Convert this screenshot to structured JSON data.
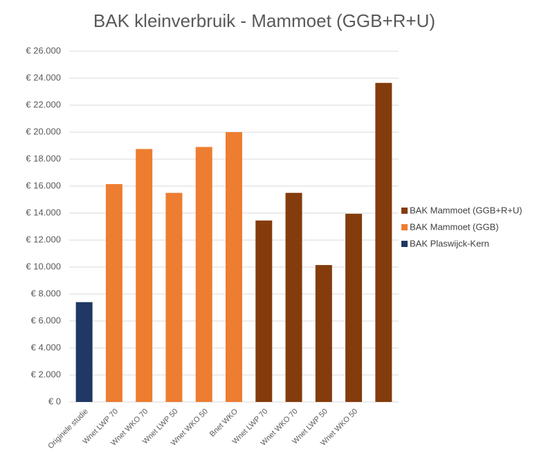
{
  "chart_data": {
    "type": "bar",
    "title": "BAK kleinverbruik - Mammoet (GGB+R+U)",
    "categories": [
      "Originele studie",
      "Wnet LWP 70",
      "Wnet WKO 70",
      "Wnet LWP 50",
      "Wnet WKO 50",
      "Bnet WKO",
      "Wnet LWP 70",
      "Wnet WKO 70",
      "Wnet LWP 50",
      "Wnet WKO 50",
      null
    ],
    "series": [
      {
        "name": "BAK Mammoet (GGB+R+U)",
        "color": "#843c0c",
        "values": [
          null,
          null,
          null,
          null,
          null,
          null,
          13450,
          15500,
          10150,
          13950,
          23650
        ]
      },
      {
        "name": "BAK Mammoet (GGB)",
        "color": "#ed7d31",
        "values": [
          null,
          16150,
          18750,
          15500,
          18900,
          20000,
          null,
          null,
          null,
          null,
          null
        ]
      },
      {
        "name": "BAK Plaswijck-Kern",
        "color": "#203864",
        "values": [
          7400,
          null,
          null,
          null,
          null,
          null,
          null,
          null,
          null,
          null,
          null
        ]
      }
    ],
    "ylim": [
      0,
      26000
    ],
    "yticks": [
      {
        "value": 0,
        "label": "€ 0"
      },
      {
        "value": 2000,
        "label": "€ 2.000"
      },
      {
        "value": 4000,
        "label": "€ 4.000"
      },
      {
        "value": 6000,
        "label": "€ 6.000"
      },
      {
        "value": 8000,
        "label": "€ 8.000"
      },
      {
        "value": 10000,
        "label": "€ 10.000"
      },
      {
        "value": 12000,
        "label": "€ 12.000"
      },
      {
        "value": 14000,
        "label": "€ 14.000"
      },
      {
        "value": 16000,
        "label": "€ 16.000"
      },
      {
        "value": 18000,
        "label": "€ 18.000"
      },
      {
        "value": 20000,
        "label": "€ 20.000"
      },
      {
        "value": 22000,
        "label": "€ 22.000"
      },
      {
        "value": 24000,
        "label": "€ 24.000"
      },
      {
        "value": 26000,
        "label": "€ 26.000"
      }
    ],
    "grid": true,
    "legend": "right"
  }
}
